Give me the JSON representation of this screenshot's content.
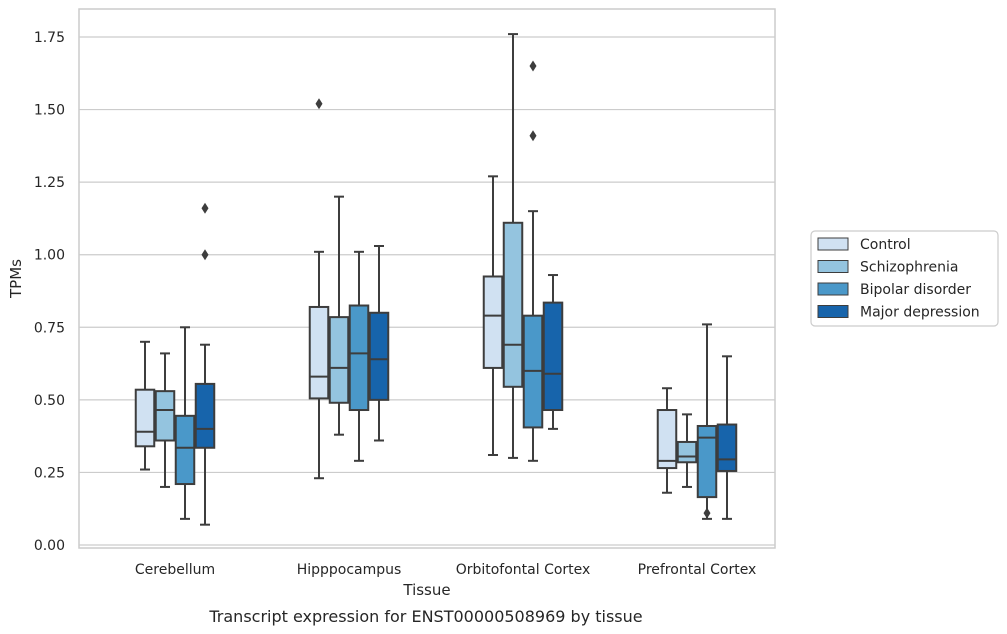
{
  "chart_data": {
    "type": "box",
    "caption": "Transcript expression for ENST00000508969 by tissue",
    "xlabel": "Tissue",
    "ylabel": "TPMs",
    "ylim": [
      -0.01,
      1.85
    ],
    "yticks": [
      0.0,
      0.25,
      0.5,
      0.75,
      1.0,
      1.25,
      1.5,
      1.75
    ],
    "ytick_labels": [
      "0.00",
      "0.25",
      "0.50",
      "0.75",
      "1.00",
      "1.25",
      "1.50",
      "1.75"
    ],
    "grid": "horizontal",
    "legend_position": "right",
    "categories": [
      "Cerebellum",
      "Hipppocampus",
      "Orbitofontal Cortex",
      "Prefrontal Cortex"
    ],
    "series": [
      {
        "name": "Control",
        "color": "#d0e1f2",
        "boxes": [
          {
            "whislo": 0.26,
            "q1": 0.34,
            "med": 0.39,
            "q3": 0.535,
            "whishi": 0.7,
            "fliers": []
          },
          {
            "whislo": 0.23,
            "q1": 0.505,
            "med": 0.58,
            "q3": 0.82,
            "whishi": 1.01,
            "fliers": [
              1.52
            ]
          },
          {
            "whislo": 0.31,
            "q1": 0.61,
            "med": 0.79,
            "q3": 0.925,
            "whishi": 1.27,
            "fliers": []
          },
          {
            "whislo": 0.18,
            "q1": 0.265,
            "med": 0.29,
            "q3": 0.465,
            "whishi": 0.54,
            "fliers": []
          }
        ]
      },
      {
        "name": "Schizophrenia",
        "color": "#94c4df",
        "boxes": [
          {
            "whislo": 0.2,
            "q1": 0.36,
            "med": 0.465,
            "q3": 0.53,
            "whishi": 0.66,
            "fliers": []
          },
          {
            "whislo": 0.38,
            "q1": 0.49,
            "med": 0.61,
            "q3": 0.785,
            "whishi": 1.2,
            "fliers": []
          },
          {
            "whislo": 0.3,
            "q1": 0.545,
            "med": 0.69,
            "q3": 1.11,
            "whishi": 1.76,
            "fliers": []
          },
          {
            "whislo": 0.2,
            "q1": 0.285,
            "med": 0.305,
            "q3": 0.355,
            "whishi": 0.45,
            "fliers": []
          }
        ]
      },
      {
        "name": "Bipolar disorder",
        "color": "#4a98c9",
        "boxes": [
          {
            "whislo": 0.09,
            "q1": 0.21,
            "med": 0.335,
            "q3": 0.445,
            "whishi": 0.75,
            "fliers": []
          },
          {
            "whislo": 0.29,
            "q1": 0.465,
            "med": 0.66,
            "q3": 0.825,
            "whishi": 1.01,
            "fliers": []
          },
          {
            "whislo": 0.29,
            "q1": 0.405,
            "med": 0.6,
            "q3": 0.79,
            "whishi": 1.15,
            "fliers": [
              1.41,
              1.65
            ]
          },
          {
            "whislo": 0.09,
            "q1": 0.165,
            "med": 0.37,
            "q3": 0.41,
            "whishi": 0.76,
            "fliers": [
              0.11
            ]
          }
        ]
      },
      {
        "name": "Major depression",
        "color": "#1764ab",
        "boxes": [
          {
            "whislo": 0.07,
            "q1": 0.335,
            "med": 0.4,
            "q3": 0.555,
            "whishi": 0.69,
            "fliers": [
              1.0,
              1.16
            ]
          },
          {
            "whislo": 0.36,
            "q1": 0.5,
            "med": 0.64,
            "q3": 0.8,
            "whishi": 1.03,
            "fliers": []
          },
          {
            "whislo": 0.4,
            "q1": 0.465,
            "med": 0.59,
            "q3": 0.835,
            "whishi": 0.93,
            "fliers": []
          },
          {
            "whislo": 0.09,
            "q1": 0.255,
            "med": 0.295,
            "q3": 0.415,
            "whishi": 0.65,
            "fliers": []
          }
        ]
      }
    ]
  }
}
